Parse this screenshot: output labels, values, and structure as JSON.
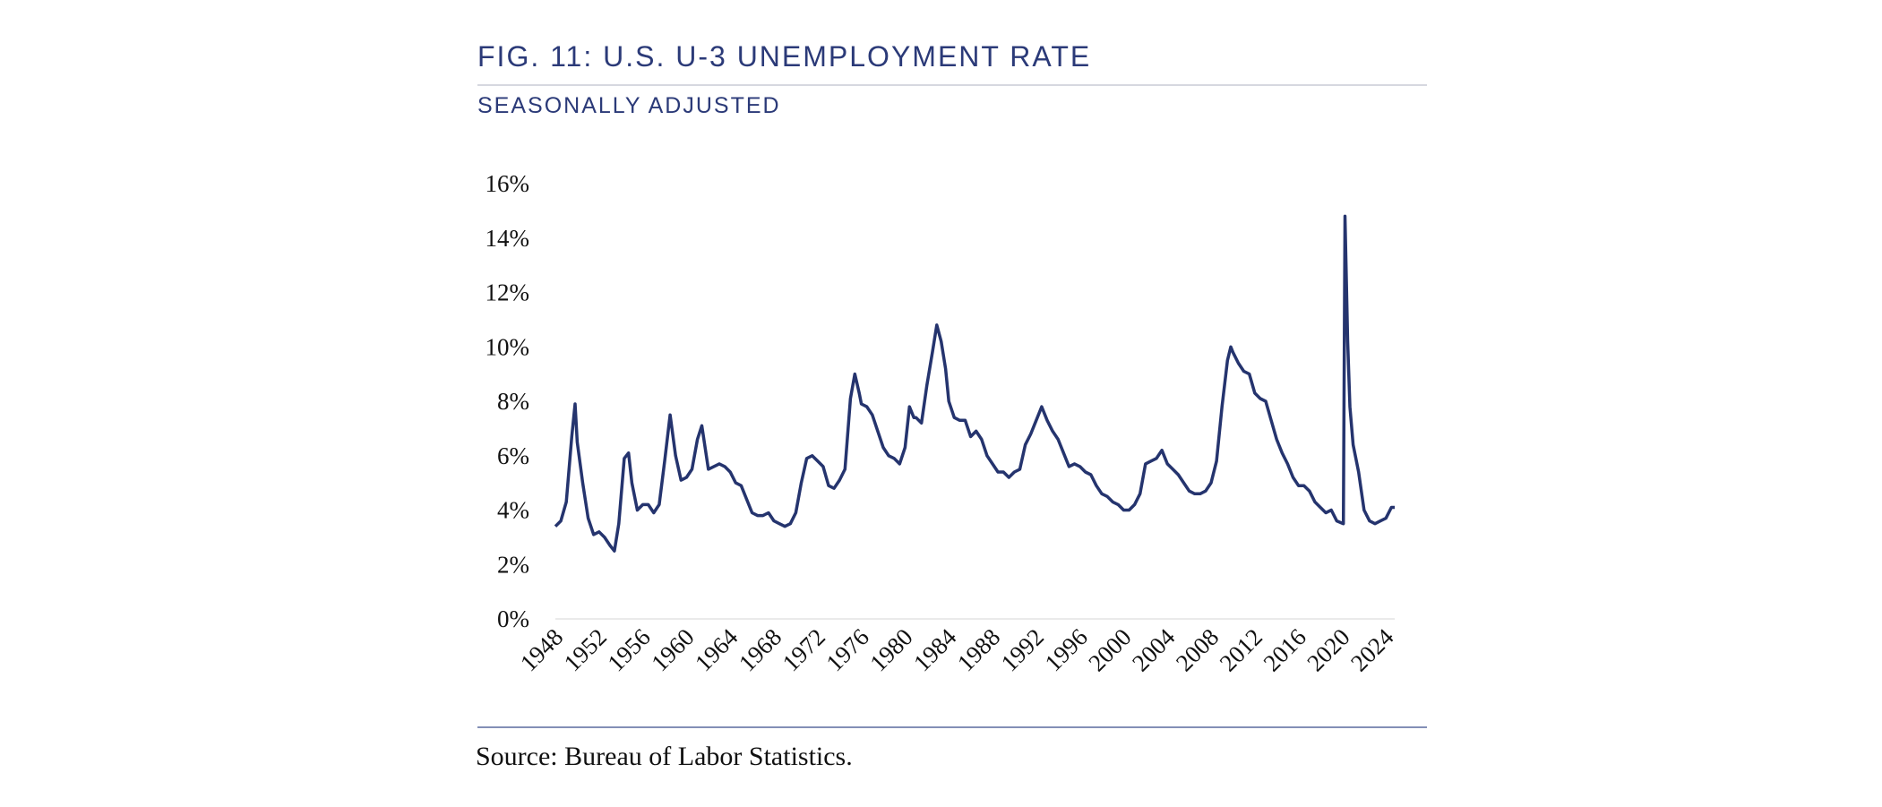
{
  "chart_data": {
    "type": "line",
    "title": "FIG. 11: U.S. U-3 UNEMPLOYMENT RATE",
    "subtitle": "SEASONALLY ADJUSTED",
    "source": "Source: Bureau of Labor Statistics.",
    "x": [
      1948.0,
      1948.5,
      1949.0,
      1949.5,
      1949.8,
      1950.0,
      1950.5,
      1951.0,
      1951.5,
      1952.0,
      1952.5,
      1953.0,
      1953.4,
      1953.8,
      1954.3,
      1954.7,
      1955.0,
      1955.5,
      1956.0,
      1956.5,
      1957.0,
      1957.5,
      1958.0,
      1958.5,
      1959.0,
      1959.5,
      1960.0,
      1960.5,
      1961.0,
      1961.4,
      1962.0,
      1962.5,
      1963.0,
      1963.5,
      1964.0,
      1964.5,
      1965.0,
      1965.5,
      1966.0,
      1966.5,
      1967.0,
      1967.5,
      1968.0,
      1968.5,
      1969.0,
      1969.5,
      1970.0,
      1970.5,
      1971.0,
      1971.5,
      1972.0,
      1972.5,
      1973.0,
      1973.5,
      1974.0,
      1974.5,
      1975.0,
      1975.4,
      1975.8,
      1976.0,
      1976.5,
      1977.0,
      1977.5,
      1978.0,
      1978.5,
      1979.0,
      1979.5,
      1980.0,
      1980.4,
      1980.8,
      1981.0,
      1981.5,
      1982.0,
      1982.5,
      1982.9,
      1983.3,
      1983.7,
      1984.0,
      1984.5,
      1985.0,
      1985.5,
      1986.0,
      1986.5,
      1987.0,
      1987.5,
      1988.0,
      1988.5,
      1989.0,
      1989.5,
      1990.0,
      1990.5,
      1991.0,
      1991.5,
      1992.0,
      1992.5,
      1993.0,
      1993.5,
      1994.0,
      1994.5,
      1995.0,
      1995.5,
      1996.0,
      1996.5,
      1997.0,
      1997.5,
      1998.0,
      1998.5,
      1999.0,
      1999.5,
      2000.0,
      2000.5,
      2001.0,
      2001.5,
      2002.0,
      2002.5,
      2003.0,
      2003.5,
      2004.0,
      2004.5,
      2005.0,
      2005.5,
      2006.0,
      2006.5,
      2007.0,
      2007.5,
      2008.0,
      2008.5,
      2009.0,
      2009.5,
      2009.8,
      2010.0,
      2010.5,
      2011.0,
      2011.5,
      2012.0,
      2012.5,
      2013.0,
      2013.5,
      2014.0,
      2014.5,
      2015.0,
      2015.5,
      2016.0,
      2016.5,
      2017.0,
      2017.5,
      2018.0,
      2018.5,
      2019.0,
      2019.5,
      2020.1,
      2020.25,
      2020.5,
      2020.7,
      2021.0,
      2021.5,
      2022.0,
      2022.5,
      2023.0,
      2023.5,
      2024.0,
      2024.5,
      2024.8
    ],
    "series": [
      {
        "color": "#25346e",
        "values": [
          3.4,
          3.6,
          4.3,
          6.7,
          7.9,
          6.5,
          5.0,
          3.7,
          3.1,
          3.2,
          3.0,
          2.7,
          2.5,
          3.5,
          5.9,
          6.1,
          5.0,
          4.0,
          4.2,
          4.2,
          3.9,
          4.2,
          5.8,
          7.5,
          6.0,
          5.1,
          5.2,
          5.5,
          6.6,
          7.1,
          5.5,
          5.6,
          5.7,
          5.6,
          5.4,
          5.0,
          4.9,
          4.4,
          3.9,
          3.8,
          3.8,
          3.9,
          3.6,
          3.5,
          3.4,
          3.5,
          3.9,
          5.0,
          5.9,
          6.0,
          5.8,
          5.6,
          4.9,
          4.8,
          5.1,
          5.5,
          8.1,
          9.0,
          8.3,
          7.9,
          7.8,
          7.5,
          6.9,
          6.3,
          6.0,
          5.9,
          5.7,
          6.3,
          7.8,
          7.4,
          7.4,
          7.2,
          8.6,
          9.8,
          10.8,
          10.2,
          9.2,
          8.0,
          7.4,
          7.3,
          7.3,
          6.7,
          6.9,
          6.6,
          6.0,
          5.7,
          5.4,
          5.4,
          5.2,
          5.4,
          5.5,
          6.4,
          6.8,
          7.3,
          7.8,
          7.3,
          6.9,
          6.6,
          6.1,
          5.6,
          5.7,
          5.6,
          5.4,
          5.3,
          4.9,
          4.6,
          4.5,
          4.3,
          4.2,
          4.0,
          4.0,
          4.2,
          4.6,
          5.7,
          5.8,
          5.9,
          6.2,
          5.7,
          5.5,
          5.3,
          5.0,
          4.7,
          4.6,
          4.6,
          4.7,
          5.0,
          5.8,
          7.8,
          9.5,
          10.0,
          9.8,
          9.4,
          9.1,
          9.0,
          8.3,
          8.1,
          8.0,
          7.3,
          6.6,
          6.1,
          5.7,
          5.2,
          4.9,
          4.9,
          4.7,
          4.3,
          4.1,
          3.9,
          4.0,
          3.6,
          3.5,
          14.8,
          10.2,
          7.8,
          6.4,
          5.4,
          4.0,
          3.6,
          3.5,
          3.6,
          3.7,
          4.1,
          4.1
        ]
      }
    ],
    "xlim": [
      1948,
      2024.8
    ],
    "xticks": [
      1948,
      1952,
      1956,
      1960,
      1964,
      1968,
      1972,
      1976,
      1980,
      1984,
      1988,
      1992,
      1996,
      2000,
      2004,
      2008,
      2012,
      2016,
      2020,
      2024
    ],
    "ylim": [
      0,
      16
    ],
    "yticks": [
      {
        "value": 0,
        "label": "0%"
      },
      {
        "value": 2,
        "label": "2%"
      },
      {
        "value": 4,
        "label": "4%"
      },
      {
        "value": 6,
        "label": "6%"
      },
      {
        "value": 8,
        "label": "8%"
      },
      {
        "value": 10,
        "label": "10%"
      },
      {
        "value": 12,
        "label": "12%"
      },
      {
        "value": 14,
        "label": "14%"
      },
      {
        "value": 16,
        "label": "16%"
      }
    ],
    "grid": false
  }
}
